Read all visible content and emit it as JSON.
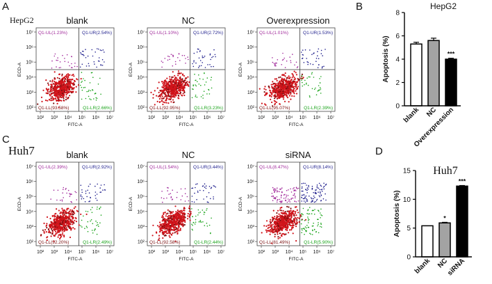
{
  "panel_labels": {
    "a": "A",
    "b": "B",
    "c": "C",
    "d": "D"
  },
  "row_labels": {
    "top": "HepG2",
    "bottom": "Huh7"
  },
  "colors": {
    "red": "#d0141b",
    "green": "#1aa31a",
    "blue": "#1e1e8c",
    "magenta": "#a0289a",
    "darkred": "#7a1010",
    "gray": "#a3a3a3",
    "black": "#000000"
  },
  "axis_labels": {
    "x": "FITC-A",
    "y": "ECD-A"
  },
  "ticks": {
    "x": [
      "10²",
      "10³",
      "10⁴",
      "10⁵",
      "10⁶",
      "10⁷"
    ],
    "y": [
      "10²",
      "10³",
      "10⁴",
      "10⁵",
      "10⁶",
      "10⁷"
    ]
  },
  "chart_data": [
    {
      "type": "scatter",
      "panel": "A",
      "title": "blank",
      "quadrants": {
        "UL": "Q1-UL(1.23%)",
        "UR": "Q1-UR(2.54%)",
        "LL": "Q1-LL(93.58%)",
        "LR": "Q1-LR(2.66%)"
      }
    },
    {
      "type": "scatter",
      "panel": "A",
      "title": "NC",
      "quadrants": {
        "UL": "Q1-UL(1.10%)",
        "UR": "Q1-UR(2.72%)",
        "LL": "Q1-LL(92.95%)",
        "LR": "Q1-LR(3.23%)"
      }
    },
    {
      "type": "scatter",
      "panel": "A",
      "title": "Overexpression",
      "quadrants": {
        "UL": "Q1-UL(1.01%)",
        "UR": "Q1-UR(1.53%)",
        "LL": "Q1-LL(95.07%)",
        "LR": "Q1-LR(2.39%)"
      }
    },
    {
      "type": "scatter",
      "panel": "C",
      "title": "blank",
      "quadrants": {
        "UL": "Q1-UL(2.39%)",
        "UR": "Q1-UR(2.92%)",
        "LL": "Q1-LL(92.20%)",
        "LR": "Q1-LR(2.49%)"
      }
    },
    {
      "type": "scatter",
      "panel": "C",
      "title": "NC",
      "quadrants": {
        "UL": "Q1-UL(1.54%)",
        "UR": "Q1-UR(3.44%)",
        "LL": "Q1-LL(92.58%)",
        "LR": "Q1-LR(2.44%)"
      }
    },
    {
      "type": "scatter",
      "panel": "C",
      "title": "siRNA",
      "quadrants": {
        "UL": "Q1-UL(8.47%)",
        "UR": "Q1-UR(8.14%)",
        "LL": "Q1-LL(81.49%)",
        "LR": "Q1-LR(5.90%)"
      }
    },
    {
      "type": "bar",
      "panel": "B",
      "title": "HepG2",
      "ylabel": "Apoptosis (%)",
      "ylim": [
        0,
        8
      ],
      "yticks": [
        "0",
        "2",
        "4",
        "6",
        "8"
      ],
      "categories": [
        "blank",
        "NC",
        "Overexpression"
      ],
      "values": [
        5.3,
        5.6,
        4.0
      ],
      "errors": [
        0.15,
        0.2,
        0.08
      ],
      "significance": [
        "",
        "",
        "***"
      ],
      "fills": [
        "#ffffff",
        "#a3a3a3",
        "#000000"
      ]
    },
    {
      "type": "bar",
      "panel": "D",
      "title": "Huh7",
      "ylabel": "Apoptosis (%)",
      "ylim": [
        0,
        15
      ],
      "yticks": [
        "0",
        "5",
        "10",
        "15"
      ],
      "categories": [
        "blank",
        "NC",
        "siRNA"
      ],
      "values": [
        5.4,
        5.9,
        12.3
      ],
      "errors": [
        0.05,
        0.1,
        0.1
      ],
      "significance": [
        "",
        "*",
        "***"
      ],
      "fills": [
        "#ffffff",
        "#a3a3a3",
        "#000000"
      ]
    }
  ]
}
